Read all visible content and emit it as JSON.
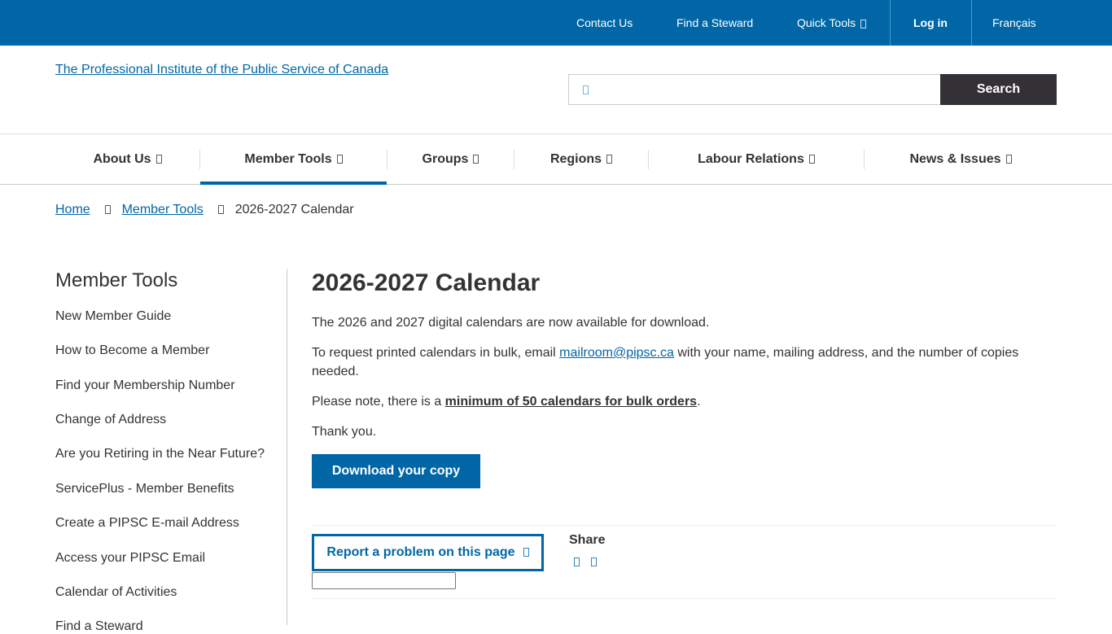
{
  "topbar": {
    "contact": "Contact Us",
    "steward": "Find a Steward",
    "quick_tools": "Quick Tools",
    "login": "Log in",
    "lang": "Français"
  },
  "header": {
    "logo_alt": "The Professional Institute of the Public Service of Canada",
    "search_placeholder": "",
    "search_label": "Search"
  },
  "nav": [
    "About Us",
    "Member Tools",
    "Groups",
    "Regions",
    "Labour Relations",
    "News & Issues"
  ],
  "breadcrumb": {
    "home": "Home",
    "parent": "Member Tools",
    "current": "2026-2027 Calendar"
  },
  "sidebar": {
    "title": "Member Tools",
    "items": [
      "New Member Guide",
      "How to Become a Member",
      "Find your Membership Number",
      "Change of Address",
      "Are you Retiring in the Near Future?",
      "ServicePlus - Member Benefits",
      "Create a PIPSC E-mail Address",
      "Access your PIPSC Email",
      "Calendar of Activities",
      "Find a Steward"
    ]
  },
  "main": {
    "title": "2026-2027 Calendar",
    "p1": "The 2026 and 2027 digital calendars are now available for download.",
    "p2a": "To request printed calendars in bulk, email ",
    "email": "mailroom@pipsc.ca",
    "p2b": " with your name, mailing address, and the number of copies needed.",
    "p3a": "Please note, there is a ",
    "p3b": "minimum of 50 calendars for bulk orders",
    "p3c": ".",
    "p4": "Thank you.",
    "download": "Download your copy",
    "report": "Report a problem on this page",
    "share": "Share"
  },
  "colors": {
    "brand": "#0066a6",
    "dark_button": "#333036"
  }
}
